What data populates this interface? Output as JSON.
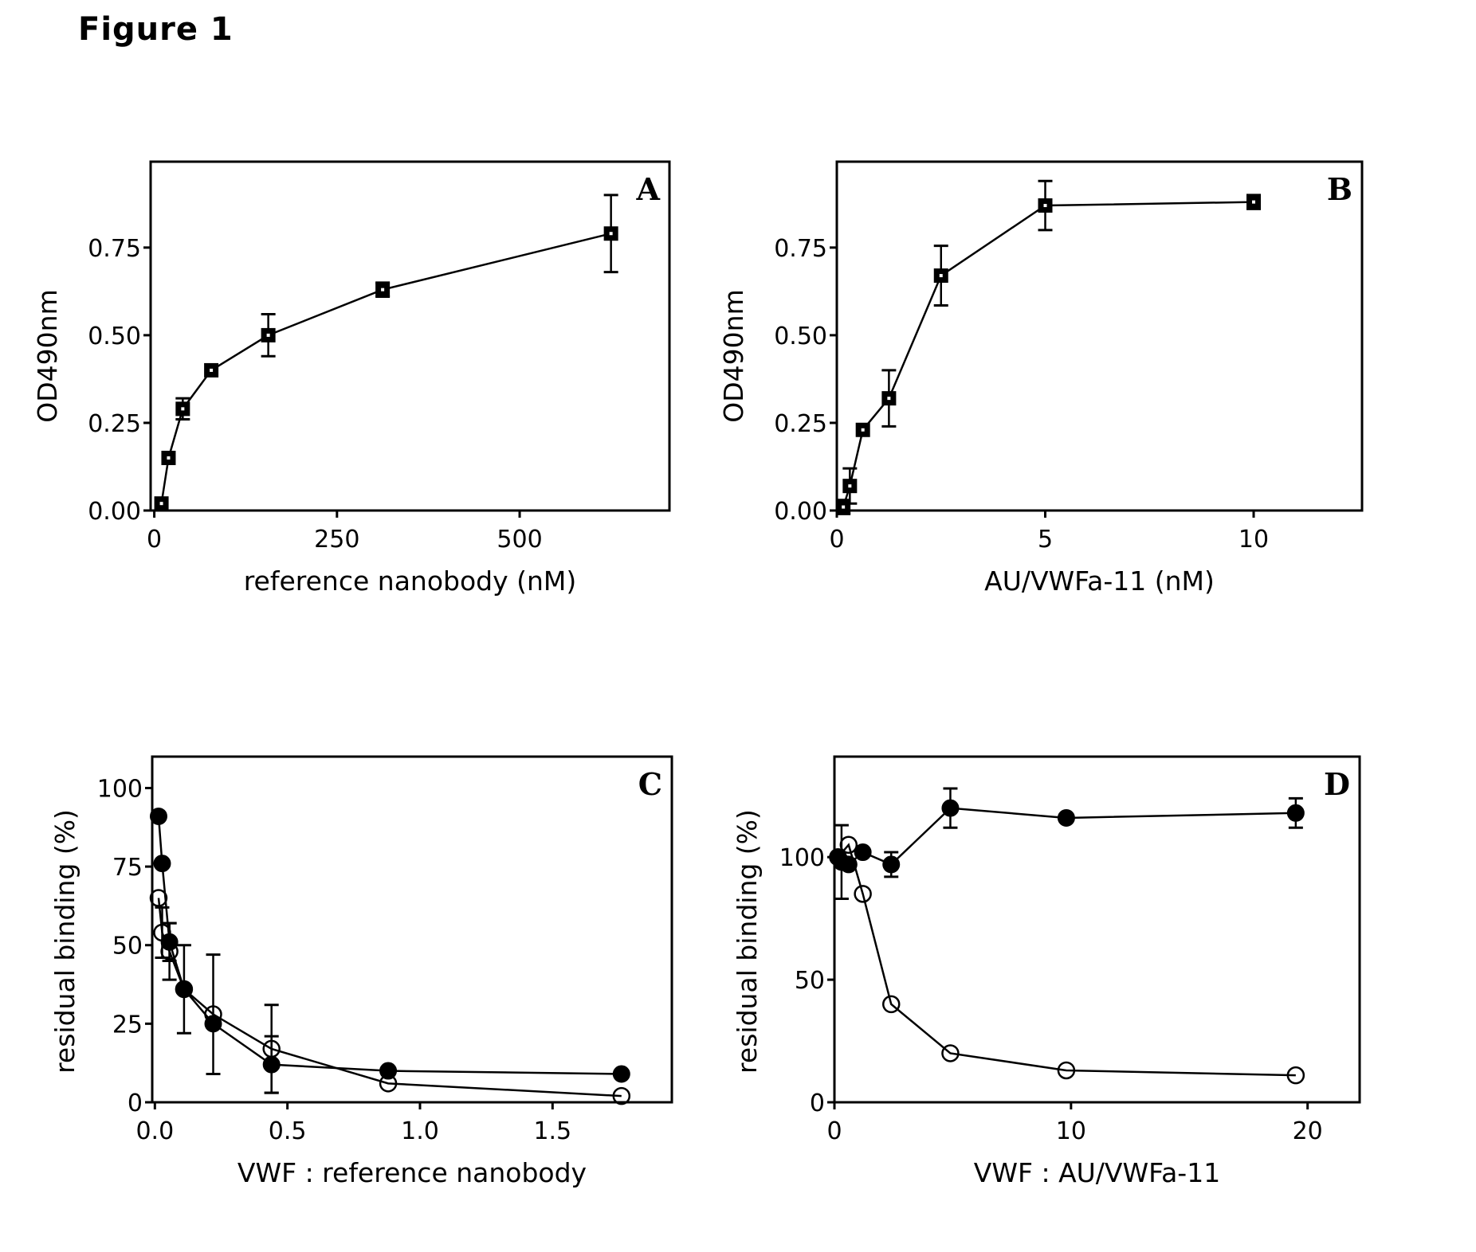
{
  "figure_title": "Figure 1",
  "chart_data": [
    {
      "panel": "A",
      "type": "line",
      "marker": "square",
      "xlabel": "reference nanobody (nM)",
      "ylabel": "OD490nm",
      "xlim": [
        -5,
        705
      ],
      "ylim": [
        0,
        0.995
      ],
      "xticks": [
        0,
        250,
        500
      ],
      "xtick_labels": [
        "0",
        "250",
        "500"
      ],
      "yticks": [
        0,
        0.25,
        0.5,
        0.75
      ],
      "ytick_labels": [
        "0.00",
        "0.25",
        "0.50",
        "0.75"
      ],
      "grid": false,
      "series": [
        {
          "name": "reference nanobody",
          "fill": "filled",
          "x": [
            9.8,
            19.5,
            39,
            78,
            156,
            312.5,
            625
          ],
          "y": [
            0.02,
            0.15,
            0.29,
            0.4,
            0.5,
            0.63,
            0.79
          ],
          "err": [
            0.0,
            0.0,
            0.03,
            0.0,
            0.06,
            0.02,
            0.11
          ]
        }
      ]
    },
    {
      "panel": "B",
      "type": "line",
      "marker": "square",
      "xlabel": "AU/VWFa-11 (nM)",
      "ylabel": "OD490nm",
      "xlim": [
        0,
        12.6
      ],
      "ylim": [
        0,
        0.995
      ],
      "xticks": [
        0,
        5,
        10
      ],
      "xtick_labels": [
        "0",
        "5",
        "10"
      ],
      "yticks": [
        0,
        0.25,
        0.5,
        0.75
      ],
      "ytick_labels": [
        "0.00",
        "0.25",
        "0.50",
        "0.75"
      ],
      "grid": false,
      "series": [
        {
          "name": "AU/VWFa-11",
          "fill": "filled",
          "x": [
            0.156,
            0.3125,
            0.625,
            1.25,
            2.5,
            5,
            10
          ],
          "y": [
            0.01,
            0.07,
            0.23,
            0.32,
            0.67,
            0.87,
            0.88
          ],
          "err": [
            0.02,
            0.05,
            0.0,
            0.08,
            0.085,
            0.07,
            0.02
          ]
        }
      ]
    },
    {
      "panel": "C",
      "type": "line",
      "marker": "circle",
      "xlabel": "VWF : reference nanobody",
      "ylabel": "residual binding (%)",
      "xlim": [
        -0.01,
        1.95
      ],
      "ylim": [
        0,
        110
      ],
      "xticks": [
        0,
        0.5,
        1.0,
        1.5
      ],
      "xtick_labels": [
        "0.0",
        "0.5",
        "1.0",
        "1.5"
      ],
      "yticks": [
        0,
        25,
        50,
        75,
        100
      ],
      "ytick_labels": [
        "0",
        "25",
        "50",
        "75",
        "100"
      ],
      "grid": false,
      "series": [
        {
          "name": "filled circles",
          "fill": "filled",
          "x": [
            0.014,
            0.0275,
            0.055,
            0.11,
            0.22,
            0.44,
            0.88,
            1.76
          ],
          "y": [
            91,
            76,
            51,
            36,
            25,
            12,
            10,
            9
          ],
          "err": [
            0,
            0,
            6,
            14,
            0,
            9,
            0,
            0
          ]
        },
        {
          "name": "open circles",
          "fill": "open",
          "x": [
            0.014,
            0.0275,
            0.055,
            0.11,
            0.22,
            0.44,
            0.88,
            1.76
          ],
          "y": [
            65,
            54,
            48,
            36,
            28,
            17,
            6,
            2
          ],
          "err": [
            0,
            8,
            9,
            0,
            19,
            14,
            0,
            0
          ]
        }
      ]
    },
    {
      "panel": "D",
      "type": "line",
      "marker": "circle",
      "xlabel": "VWF : AU/VWFa-11",
      "ylabel": "residual binding (%)",
      "xlim": [
        0,
        22.2
      ],
      "ylim": [
        0,
        141
      ],
      "xticks": [
        0,
        10,
        20
      ],
      "xtick_labels": [
        "0",
        "10",
        "20"
      ],
      "yticks": [
        0,
        50,
        100
      ],
      "ytick_labels": [
        "0",
        "50",
        "100"
      ],
      "grid": false,
      "series": [
        {
          "name": "filled circles",
          "fill": "filled",
          "x": [
            0.15,
            0.3,
            0.6,
            1.2,
            2.4,
            4.9,
            9.8,
            19.5
          ],
          "y": [
            100,
            98,
            97,
            102,
            97,
            120,
            116,
            118
          ],
          "err": [
            0,
            15,
            0,
            0,
            5,
            8,
            0,
            6
          ]
        },
        {
          "name": "open circles",
          "fill": "open",
          "x": [
            0.15,
            0.6,
            1.2,
            2.4,
            4.9,
            9.8,
            19.5
          ],
          "y": [
            100,
            105,
            85,
            40,
            20,
            13,
            11
          ],
          "err": [
            0,
            0,
            0,
            0,
            0,
            0,
            0
          ]
        }
      ]
    }
  ],
  "panels": [
    {
      "letter": "A"
    },
    {
      "letter": "B"
    },
    {
      "letter": "C"
    },
    {
      "letter": "D"
    }
  ]
}
